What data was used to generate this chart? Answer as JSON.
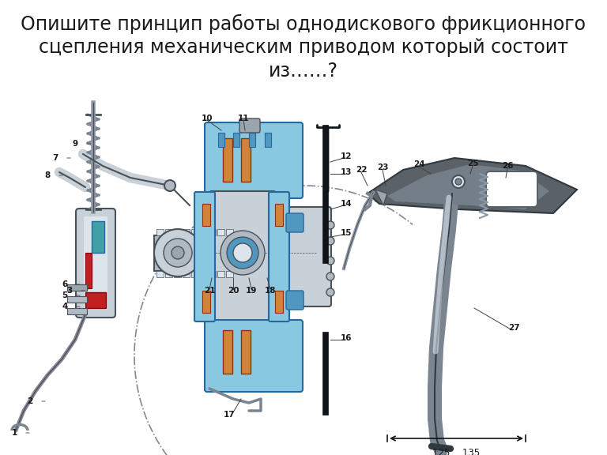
{
  "title_line1": "Опишите принцип работы однодискового фрикционного",
  "title_line2": "сцепления механическим приводом который состоит",
  "title_line3": "из……?",
  "title_fontsize": 17,
  "title_color": "#1a1a1a",
  "background_color": "#ffffff",
  "fig_width": 7.68,
  "fig_height": 5.76,
  "dpi": 100
}
